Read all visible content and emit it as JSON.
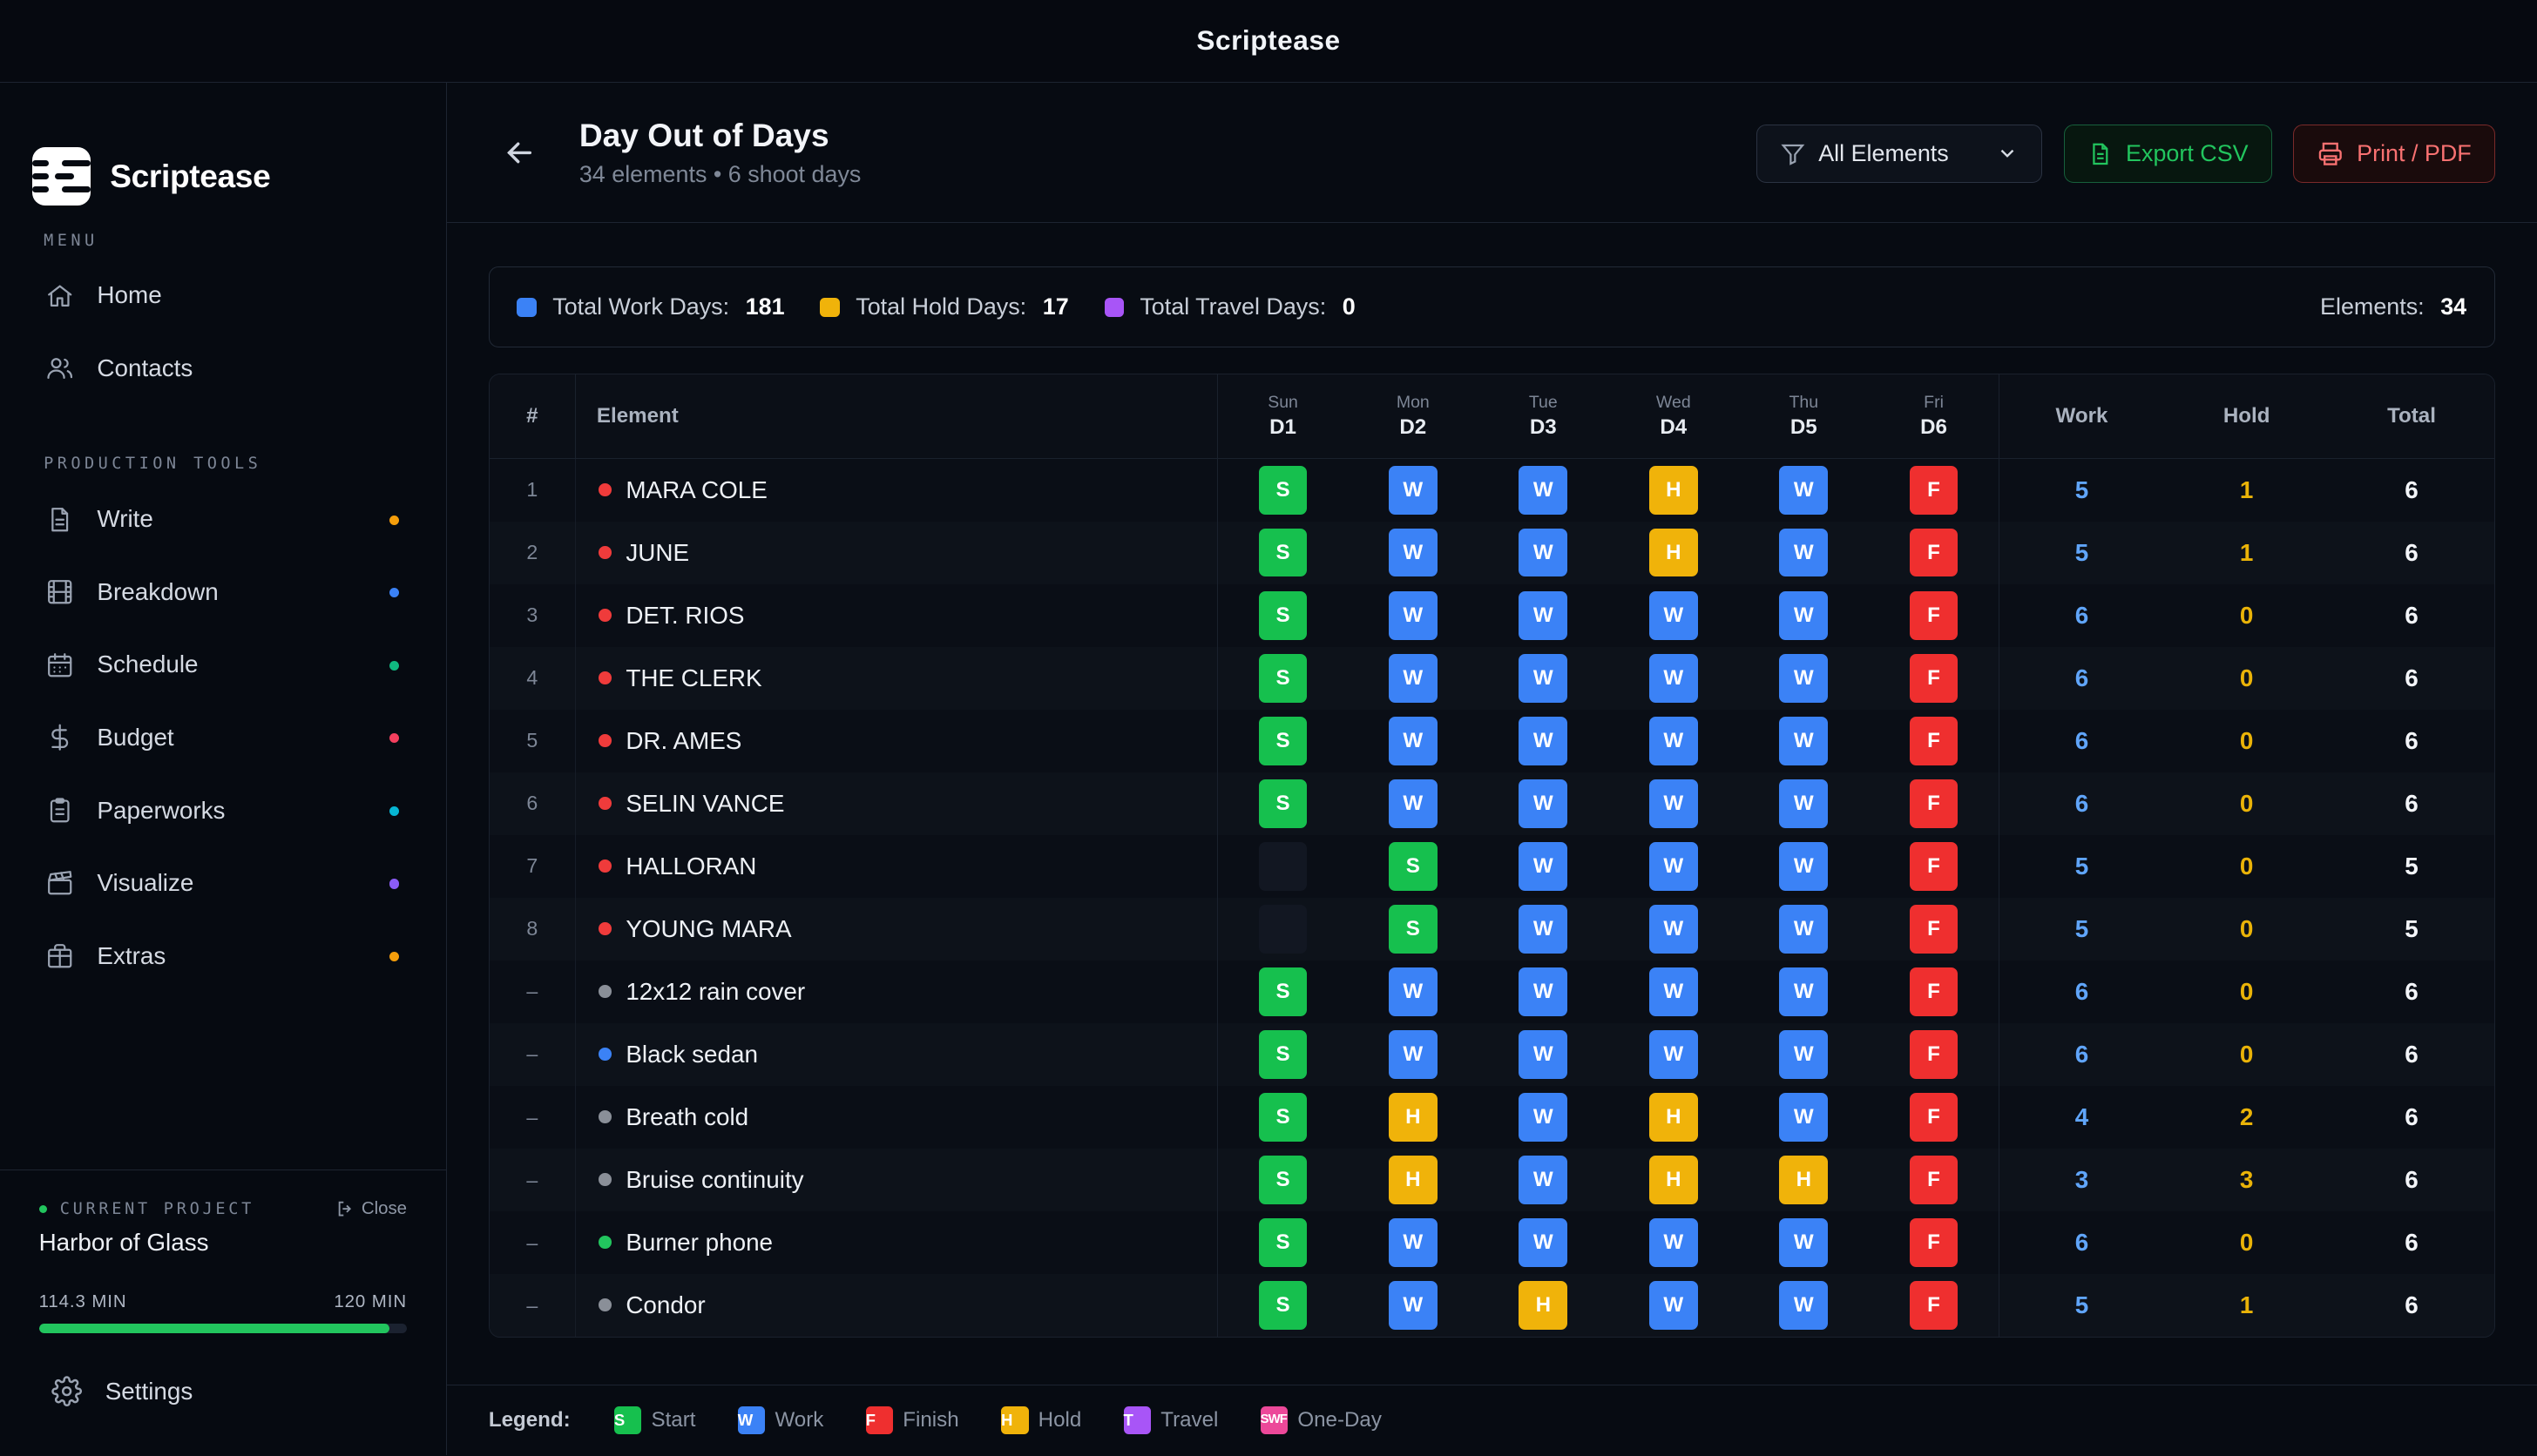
{
  "window_title": "Scriptease",
  "brand": {
    "name": "Scriptease"
  },
  "menu": {
    "label": "MENU",
    "items": [
      {
        "label": "Home",
        "icon": "home-icon"
      },
      {
        "label": "Contacts",
        "icon": "contacts-icon"
      }
    ]
  },
  "tools": {
    "label": "PRODUCTION TOOLS",
    "items": [
      {
        "label": "Write",
        "icon": "write-icon",
        "dot": "#f59e0b"
      },
      {
        "label": "Breakdown",
        "icon": "film-icon",
        "dot": "#3b82f6"
      },
      {
        "label": "Schedule",
        "icon": "calendar-icon",
        "dot": "#10b981"
      },
      {
        "label": "Budget",
        "icon": "dollar-icon",
        "dot": "#f43f5e"
      },
      {
        "label": "Paperworks",
        "icon": "clipboard-icon",
        "dot": "#06b6d4"
      },
      {
        "label": "Visualize",
        "icon": "clapper-icon",
        "dot": "#8b5cf6"
      },
      {
        "label": "Extras",
        "icon": "gift-icon",
        "dot": "#f59e0b"
      }
    ]
  },
  "project": {
    "label": "CURRENT PROJECT",
    "close_label": "Close",
    "name": "Harbor of Glass",
    "used": "114.3 MIN",
    "total": "120 MIN",
    "progress_fraction": 0.9525
  },
  "settings_label": "Settings",
  "page": {
    "title": "Day Out of Days",
    "subtitle": "34 elements • 6 shoot days",
    "filter_label": "All Elements",
    "export_label": "Export CSV",
    "print_label": "Print / PDF"
  },
  "stats": {
    "work_label": "Total Work Days:",
    "work_value": "181",
    "hold_label": "Total Hold Days:",
    "hold_value": "17",
    "travel_label": "Total Travel Days:",
    "travel_value": "0",
    "elements_label": "Elements:",
    "elements_value": "34"
  },
  "colors": {
    "S": "#16c04e",
    "W": "#3b82f6",
    "F": "#ef2f2f",
    "H": "#f0b30a",
    "T": "#a855f7",
    "SWF": "#ec4899",
    "red_dot": "#ef3b3b",
    "gray_dot": "#8a8f98",
    "blue_dot": "#3b82f6",
    "green_dot": "#22c55e"
  },
  "table": {
    "headers": {
      "num": "#",
      "element": "Element",
      "work": "Work",
      "hold": "Hold",
      "total": "Total"
    },
    "days": [
      {
        "dow": "Sun",
        "label": "D1"
      },
      {
        "dow": "Mon",
        "label": "D2"
      },
      {
        "dow": "Tue",
        "label": "D3"
      },
      {
        "dow": "Wed",
        "label": "D4"
      },
      {
        "dow": "Thu",
        "label": "D5"
      },
      {
        "dow": "Fri",
        "label": "D6"
      }
    ],
    "rows": [
      {
        "num": "1",
        "name": "MARA COLE",
        "dot": "red_dot",
        "cells": [
          "S",
          "W",
          "W",
          "H",
          "W",
          "F"
        ],
        "work": "5",
        "hold": "1",
        "total": "6"
      },
      {
        "num": "2",
        "name": "JUNE",
        "dot": "red_dot",
        "cells": [
          "S",
          "W",
          "W",
          "H",
          "W",
          "F"
        ],
        "work": "5",
        "hold": "1",
        "total": "6"
      },
      {
        "num": "3",
        "name": "DET. RIOS",
        "dot": "red_dot",
        "cells": [
          "S",
          "W",
          "W",
          "W",
          "W",
          "F"
        ],
        "work": "6",
        "hold": "0",
        "total": "6"
      },
      {
        "num": "4",
        "name": "THE CLERK",
        "dot": "red_dot",
        "cells": [
          "S",
          "W",
          "W",
          "W",
          "W",
          "F"
        ],
        "work": "6",
        "hold": "0",
        "total": "6"
      },
      {
        "num": "5",
        "name": "DR. AMES",
        "dot": "red_dot",
        "cells": [
          "S",
          "W",
          "W",
          "W",
          "W",
          "F"
        ],
        "work": "6",
        "hold": "0",
        "total": "6"
      },
      {
        "num": "6",
        "name": "SELIN VANCE",
        "dot": "red_dot",
        "cells": [
          "S",
          "W",
          "W",
          "W",
          "W",
          "F"
        ],
        "work": "6",
        "hold": "0",
        "total": "6"
      },
      {
        "num": "7",
        "name": "HALLORAN",
        "dot": "red_dot",
        "cells": [
          "",
          "S",
          "W",
          "W",
          "W",
          "F"
        ],
        "work": "5",
        "hold": "0",
        "total": "5"
      },
      {
        "num": "8",
        "name": "YOUNG MARA",
        "dot": "red_dot",
        "cells": [
          "",
          "S",
          "W",
          "W",
          "W",
          "F"
        ],
        "work": "5",
        "hold": "0",
        "total": "5"
      },
      {
        "num": "–",
        "name": "12x12 rain cover",
        "dot": "gray_dot",
        "cells": [
          "S",
          "W",
          "W",
          "W",
          "W",
          "F"
        ],
        "work": "6",
        "hold": "0",
        "total": "6"
      },
      {
        "num": "–",
        "name": "Black sedan",
        "dot": "blue_dot",
        "cells": [
          "S",
          "W",
          "W",
          "W",
          "W",
          "F"
        ],
        "work": "6",
        "hold": "0",
        "total": "6"
      },
      {
        "num": "–",
        "name": "Breath cold",
        "dot": "gray_dot",
        "cells": [
          "S",
          "H",
          "W",
          "H",
          "W",
          "F"
        ],
        "work": "4",
        "hold": "2",
        "total": "6"
      },
      {
        "num": "–",
        "name": "Bruise continuity",
        "dot": "gray_dot",
        "cells": [
          "S",
          "H",
          "W",
          "H",
          "H",
          "F"
        ],
        "work": "3",
        "hold": "3",
        "total": "6"
      },
      {
        "num": "–",
        "name": "Burner phone",
        "dot": "green_dot",
        "cells": [
          "S",
          "W",
          "W",
          "W",
          "W",
          "F"
        ],
        "work": "6",
        "hold": "0",
        "total": "6"
      },
      {
        "num": "–",
        "name": "Condor",
        "dot": "gray_dot",
        "cells": [
          "S",
          "W",
          "H",
          "W",
          "W",
          "F"
        ],
        "work": "5",
        "hold": "1",
        "total": "6"
      }
    ]
  },
  "legend": {
    "title": "Legend:",
    "items": [
      {
        "code": "S",
        "label": "Start"
      },
      {
        "code": "W",
        "label": "Work"
      },
      {
        "code": "F",
        "label": "Finish"
      },
      {
        "code": "H",
        "label": "Hold"
      },
      {
        "code": "T",
        "label": "Travel"
      },
      {
        "code": "SWF",
        "label": "One-Day"
      }
    ]
  }
}
